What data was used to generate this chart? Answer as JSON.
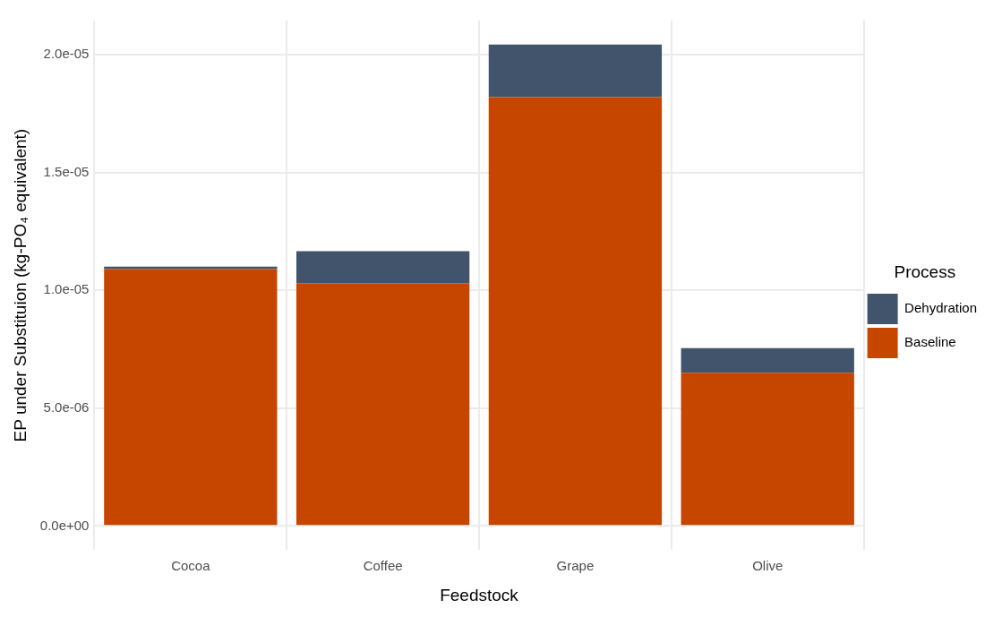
{
  "chart_data": {
    "type": "bar",
    "stacked": true,
    "xlabel": "Feedstock",
    "ylabel": "EP under Substituion (kg-PO₄ equivalent)",
    "legend_title": "Process",
    "legend": "right",
    "grid": true,
    "categories": [
      "Cocoa",
      "Coffee",
      "Grape",
      "Olive"
    ],
    "series": [
      {
        "name": "Baseline",
        "color": "#c64600",
        "values": [
          1.09e-05,
          1.03e-05,
          1.82e-05,
          6.5e-06
        ]
      },
      {
        "name": "Dehydration",
        "color": "#42546b",
        "values": [
          1.1e-07,
          1.36e-06,
          2.23e-06,
          1.05e-06
        ]
      }
    ],
    "ylim": [
      -1.02e-06,
      2.145e-05
    ],
    "yticks": [
      {
        "value": 0,
        "label": "0.0e+00"
      },
      {
        "value": 5e-06,
        "label": "5.0e-06"
      },
      {
        "value": 1e-05,
        "label": "1.0e-05"
      },
      {
        "value": 1.5e-05,
        "label": "1.5e-05"
      },
      {
        "value": 2e-05,
        "label": "2.0e-05"
      }
    ]
  }
}
